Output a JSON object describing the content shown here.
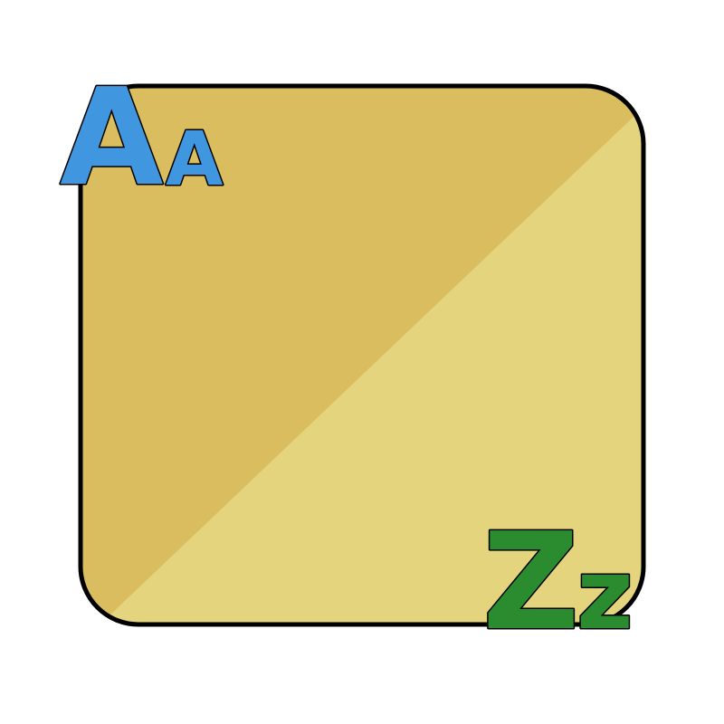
{
  "icon": {
    "name": "alphabet-a-to-z-icon",
    "colors": {
      "panel_dark": "#d9bd5f",
      "panel_light": "#e3d47d",
      "outline": "#000000",
      "letter_a": "#4196e0",
      "letter_z": "#2b8c2f"
    },
    "top_left": {
      "upper": "A",
      "lower": "A"
    },
    "bottom_right": {
      "upper": "Z",
      "lower": "z"
    }
  }
}
